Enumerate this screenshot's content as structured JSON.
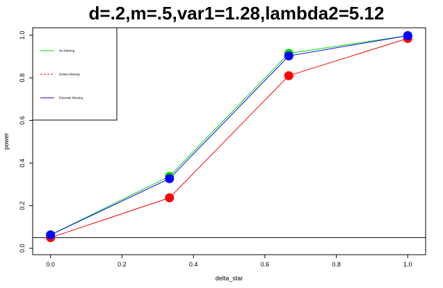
{
  "chart_data": {
    "type": "line",
    "title": "d=.2,m=.5,var1=1.28,lambda2=5.12",
    "xlabel": "delta_star",
    "ylabel": "power",
    "xlim": [
      -0.05,
      1.05
    ],
    "ylim": [
      -0.03,
      1.035
    ],
    "xticks": [
      0.0,
      0.2,
      0.4,
      0.6,
      0.8,
      1.0
    ],
    "xtick_labels": [
      "0.0",
      "0.2",
      "0.4",
      "0.6",
      "0.8",
      "1.0"
    ],
    "yticks": [
      0.0,
      0.2,
      0.4,
      0.6,
      0.8,
      1.0
    ],
    "ytick_labels": [
      "0.0",
      "0.2",
      "0.4",
      "0.6",
      "0.8",
      "1.0"
    ],
    "x": [
      0.0,
      0.333,
      0.667,
      1.0
    ],
    "series": [
      {
        "name": "No Missing",
        "color": "#00dd00",
        "line_style": "solid",
        "values": [
          0.063,
          0.338,
          0.915,
          0.998
        ]
      },
      {
        "name": "Delete Missing",
        "color": "#ff0000",
        "line_style": "dashed",
        "values": [
          0.05,
          0.237,
          0.81,
          0.985
        ]
      },
      {
        "name": "Estimate Missing",
        "color": "#0000ff",
        "line_style": "solid",
        "values": [
          0.063,
          0.327,
          0.903,
          0.998
        ]
      }
    ],
    "hline": 0.05,
    "grid": false,
    "legend_position": "top-left"
  }
}
